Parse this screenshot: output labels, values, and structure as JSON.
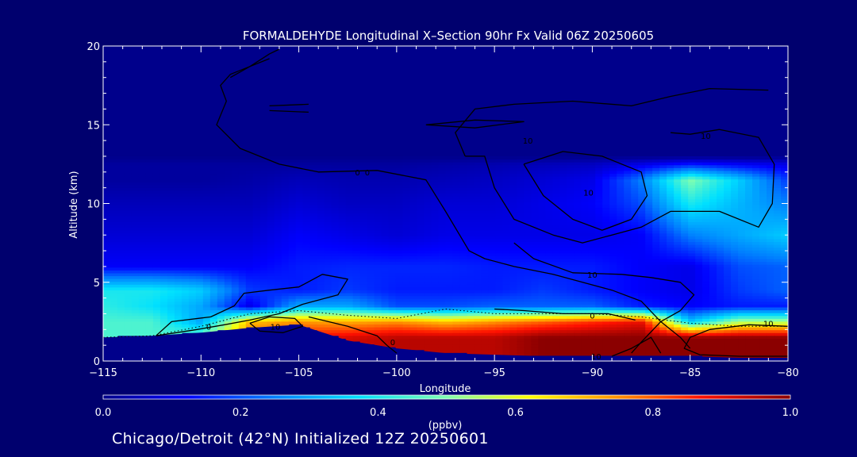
{
  "chart_data": {
    "type": "heatmap",
    "title": "FORMALDEHYDE Longitudinal X–Section 90hr  Fx Valid 06Z 20250605",
    "xlabel": "Longitude",
    "ylabel": "Altitude (km)",
    "xlim": [
      -115,
      -80
    ],
    "ylim": [
      0,
      20
    ],
    "x_ticks": [
      -115,
      -110,
      -105,
      -100,
      -95,
      -90,
      -85,
      -80
    ],
    "x_tick_labels": [
      "−115",
      "−110",
      "−105",
      "−100",
      "−95",
      "−90",
      "−85",
      "−80"
    ],
    "y_ticks": [
      0,
      5,
      10,
      15,
      20
    ],
    "y_tick_labels": [
      "0",
      "5",
      "10",
      "15",
      "20"
    ],
    "colorbar": {
      "min": 0.0,
      "max": 1.0,
      "tick_labels": [
        "0.0",
        "0.2",
        "0.4",
        "0.6",
        "0.8",
        "1.0"
      ],
      "units": "(ppbv)"
    },
    "colormap": [
      "#00008b",
      "#0000ff",
      "#0080ff",
      "#00e0ff",
      "#80ffb0",
      "#ffff00",
      "#ff9000",
      "#ff1000",
      "#8b0000"
    ],
    "longitudes": [
      -115,
      -112.5,
      -110,
      -107.5,
      -105,
      -102.5,
      -100,
      -97.5,
      -95,
      -92.5,
      -90,
      -87.5,
      -85,
      -82.5,
      -80
    ],
    "surface_height_km": [
      1.5,
      1.6,
      1.8,
      2.1,
      2.3,
      1.3,
      0.8,
      0.5,
      0.4,
      0.3,
      0.3,
      0.3,
      0.3,
      0.2,
      0.2
    ],
    "pbl_top_km": [
      1.5,
      1.6,
      2.2,
      3.0,
      3.2,
      2.9,
      2.7,
      3.3,
      3.0,
      3.0,
      3.0,
      2.8,
      2.4,
      2.2,
      2.2
    ],
    "rows": [
      {
        "alt_km": 1.5,
        "values": [
          0.45,
          0.45,
          0.5,
          0.8,
          0.88,
          0.92,
          0.95,
          0.95,
          0.95,
          1.0,
          1.0,
          1.0,
          1.0,
          1.0,
          1.0
        ]
      },
      {
        "alt_km": 2.5,
        "values": [
          0.45,
          0.45,
          0.3,
          0.7,
          0.75,
          0.72,
          0.75,
          0.7,
          0.75,
          0.8,
          0.85,
          0.9,
          0.35,
          0.55,
          0.55
        ]
      },
      {
        "alt_km": 3.5,
        "values": [
          0.42,
          0.38,
          0.3,
          0.1,
          0.3,
          0.3,
          0.2,
          0.2,
          0.22,
          0.22,
          0.22,
          0.15,
          0.12,
          0.15,
          0.15
        ]
      },
      {
        "alt_km": 4.5,
        "values": [
          0.4,
          0.4,
          0.35,
          0.18,
          0.15,
          0.18,
          0.15,
          0.15,
          0.15,
          0.18,
          0.15,
          0.12,
          0.1,
          0.18,
          0.22
        ]
      },
      {
        "alt_km": 6.0,
        "values": [
          0.12,
          0.12,
          0.12,
          0.12,
          0.15,
          0.16,
          0.16,
          0.16,
          0.15,
          0.15,
          0.15,
          0.12,
          0.1,
          0.2,
          0.22
        ]
      },
      {
        "alt_km": 8.0,
        "values": [
          0.08,
          0.08,
          0.08,
          0.08,
          0.12,
          0.1,
          0.08,
          0.1,
          0.1,
          0.1,
          0.1,
          0.12,
          0.25,
          0.3,
          0.35
        ]
      },
      {
        "alt_km": 10.0,
        "values": [
          0.05,
          0.05,
          0.05,
          0.05,
          0.08,
          0.06,
          0.06,
          0.08,
          0.08,
          0.1,
          0.12,
          0.2,
          0.4,
          0.32,
          0.25
        ]
      },
      {
        "alt_km": 11.5,
        "values": [
          0.02,
          0.02,
          0.02,
          0.03,
          0.05,
          0.04,
          0.04,
          0.05,
          0.06,
          0.08,
          0.1,
          0.25,
          0.5,
          0.35,
          0.18
        ]
      },
      {
        "alt_km": 12.5,
        "values": [
          0.02,
          0.02,
          0.02,
          0.02,
          0.02,
          0.02,
          0.02,
          0.03,
          0.04,
          0.05,
          0.06,
          0.1,
          0.15,
          0.12,
          0.1
        ]
      },
      {
        "alt_km": 13.0,
        "values": [
          0.0,
          0.0,
          0.0,
          0.0,
          0.0,
          0.0,
          0.0,
          0.0,
          0.0,
          0.0,
          0.0,
          0.0,
          0.0,
          0.0,
          0.0
        ]
      },
      {
        "alt_km": 20.0,
        "values": [
          0.0,
          0.0,
          0.0,
          0.0,
          0.0,
          0.0,
          0.0,
          0.0,
          0.0,
          0.0,
          0.0,
          0.0,
          0.0,
          0.0,
          0.0
        ]
      }
    ],
    "contours": [
      {
        "label": "0",
        "label_pos": [
          -102,
          12.0
        ],
        "points": [
          [
            -108.5,
            18.0
          ],
          [
            -107.5,
            18.7
          ],
          [
            -106.5,
            19.5
          ],
          [
            -106,
            19.8
          ]
        ]
      },
      {
        "label": "0",
        "label_pos": [
          -101.5,
          12.0
        ],
        "points": [
          [
            -106.5,
            19.2
          ],
          [
            -108.5,
            18.2
          ],
          [
            -109,
            17.5
          ],
          [
            -108.7,
            16.5
          ],
          [
            -109.2,
            15.0
          ],
          [
            -108,
            13.5
          ],
          [
            -106,
            12.5
          ],
          [
            -104,
            12.0
          ],
          [
            -101,
            12.1
          ],
          [
            -98.5,
            11.5
          ],
          [
            -97.5,
            9.5
          ],
          [
            -96.3,
            7.0
          ],
          [
            -95.5,
            6.5
          ],
          [
            -94,
            6.0
          ],
          [
            -92,
            5.5
          ],
          [
            -89,
            4.5
          ],
          [
            -87.5,
            3.8
          ],
          [
            -86.5,
            2.5
          ],
          [
            -85.5,
            1.5
          ],
          [
            -85,
            0.8
          ]
        ]
      },
      {
        "label": "10",
        "label_pos": [
          -93.3,
          14.0
        ],
        "points": [
          [
            -96.5,
            13.0
          ],
          [
            -97,
            14.5
          ],
          [
            -96,
            16.0
          ],
          [
            -94,
            16.3
          ],
          [
            -91,
            16.5
          ],
          [
            -88,
            16.2
          ],
          [
            -86,
            16.8
          ],
          [
            -84,
            17.3
          ],
          [
            -81,
            17.2
          ]
        ]
      },
      {
        "label": "10",
        "label_pos": [
          -84.2,
          14.3
        ],
        "points": [
          [
            -86,
            14.5
          ],
          [
            -85,
            14.4
          ],
          [
            -83.5,
            14.7
          ],
          [
            -81.5,
            14.2
          ],
          [
            -80.7,
            12.5
          ],
          [
            -80.8,
            10.0
          ],
          [
            -81.5,
            8.5
          ],
          [
            -83.5,
            9.5
          ],
          [
            -86,
            9.5
          ],
          [
            -87.5,
            8.5
          ],
          [
            -89,
            8.0
          ],
          [
            -90.5,
            7.5
          ],
          [
            -92,
            8.0
          ],
          [
            -94,
            9.0
          ],
          [
            -95,
            11.0
          ],
          [
            -95.5,
            13.0
          ],
          [
            -96.5,
            13.0
          ]
        ]
      },
      {
        "label": "10",
        "label_pos": [
          -90.2,
          10.7
        ],
        "points": [
          [
            -93.5,
            12.5
          ],
          [
            -91.5,
            13.3
          ],
          [
            -89.5,
            13.0
          ],
          [
            -87.5,
            12.0
          ],
          [
            -87.2,
            10.5
          ],
          [
            -88,
            9.0
          ],
          [
            -89.5,
            8.3
          ],
          [
            -91,
            9.0
          ],
          [
            -92.5,
            10.5
          ],
          [
            -93.5,
            12.5
          ]
        ]
      },
      {
        "label": "10",
        "label_pos": [
          -90,
          5.5
        ],
        "points": [
          [
            -94,
            7.5
          ],
          [
            -93,
            6.5
          ],
          [
            -91,
            5.6
          ],
          [
            -88.5,
            5.5
          ],
          [
            -87,
            5.3
          ],
          [
            -85.5,
            5.0
          ],
          [
            -84.8,
            4.2
          ],
          [
            -85.5,
            3.2
          ],
          [
            -86.5,
            2.5
          ],
          [
            -87.5,
            1.2
          ],
          [
            -88,
            0.5
          ]
        ]
      },
      {
        "label": "10",
        "label_pos": [
          -106.2,
          2.2
        ],
        "points": [
          [
            -107.5,
            2.4
          ],
          [
            -106.5,
            2.8
          ],
          [
            -105.2,
            2.7
          ],
          [
            -104.8,
            2.2
          ],
          [
            -105.8,
            1.8
          ],
          [
            -107,
            1.9
          ],
          [
            -107.5,
            2.4
          ]
        ]
      },
      {
        "label": "10",
        "label_pos": [
          -81,
          2.4
        ],
        "points": [
          [
            -80,
            2.2
          ],
          [
            -82,
            2.3
          ],
          [
            -84,
            2.0
          ],
          [
            -85,
            1.5
          ],
          [
            -85.3,
            0.8
          ],
          [
            -84.5,
            0.4
          ],
          [
            -82.5,
            0.3
          ],
          [
            -80,
            0.3
          ]
        ]
      },
      {
        "label": "10",
        "label_pos": [
          -89.8,
          0.3
        ],
        "points": [
          [
            -89,
            0.3
          ],
          [
            -88,
            0.8
          ],
          [
            -87,
            1.5
          ],
          [
            -86.5,
            0.5
          ]
        ]
      },
      {
        "label": "0",
        "label_pos": [
          -109.6,
          2.2
        ],
        "points": [
          [
            -112.3,
            1.6
          ],
          [
            -111.5,
            2.5
          ],
          [
            -109.5,
            2.8
          ],
          [
            -108.3,
            3.5
          ],
          [
            -107.8,
            4.3
          ],
          [
            -106.5,
            4.5
          ],
          [
            -105,
            4.7
          ],
          [
            -103.8,
            5.5
          ],
          [
            -102.5,
            5.2
          ],
          [
            -103,
            4.2
          ],
          [
            -104.8,
            3.6
          ],
          [
            -106,
            3.0
          ],
          [
            -107.5,
            2.6
          ],
          [
            -108.8,
            2.3
          ],
          [
            -110.2,
            2.0
          ],
          [
            -112.3,
            1.6
          ]
        ]
      },
      {
        "label": "0",
        "label_pos": [
          -100.2,
          1.2
        ],
        "points": [
          [
            -104.5,
            2.8
          ],
          [
            -102.5,
            2.2
          ],
          [
            -101,
            1.6
          ],
          [
            -100.5,
            1.0
          ],
          [
            -100,
            0.5
          ]
        ]
      },
      {
        "label": "0",
        "label_pos": [
          -90,
          2.9
        ],
        "points": [
          [
            -95,
            3.3
          ],
          [
            -93.5,
            3.2
          ],
          [
            -91.5,
            3.0
          ],
          [
            -89.2,
            3.0
          ],
          [
            -87.8,
            2.6
          ]
        ]
      },
      {
        "label": "",
        "label_pos": [
          -105,
          16.2
        ],
        "points": [
          [
            -106.5,
            16.2
          ],
          [
            -104.5,
            16.3
          ]
        ]
      },
      {
        "label": "",
        "label_pos": [
          -95,
          15.0
        ],
        "points": [
          [
            -98.5,
            15.0
          ],
          [
            -96,
            15.3
          ],
          [
            -93.5,
            15.2
          ],
          [
            -96,
            14.8
          ],
          [
            -98.5,
            15.0
          ]
        ]
      },
      {
        "label": "",
        "label_pos": [
          -105,
          15.8
        ],
        "points": [
          [
            -106.5,
            15.9
          ],
          [
            -104.5,
            15.8
          ]
        ]
      }
    ]
  },
  "footer": "Chicago/Detroit (42°N) Initialized 12Z 20250601"
}
